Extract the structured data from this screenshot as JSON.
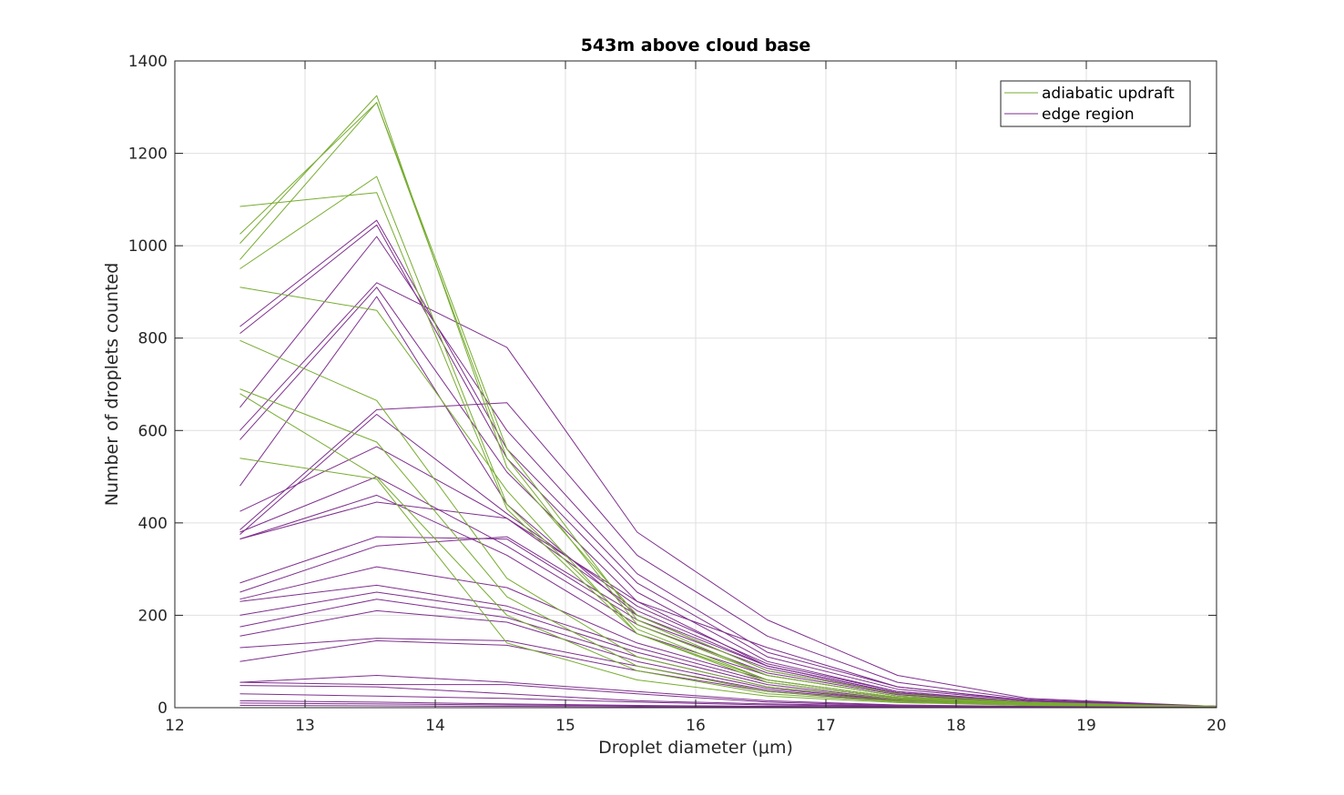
{
  "chart_data": {
    "type": "line",
    "title": "543m above cloud base",
    "xlabel": "Droplet diameter (μm)",
    "ylabel": "Number of droplets counted",
    "xlim": [
      12,
      20
    ],
    "ylim": [
      0,
      1400
    ],
    "xticks": [
      "12",
      "13",
      "14",
      "15",
      "16",
      "17",
      "18",
      "19",
      "20"
    ],
    "yticks": [
      "0",
      "200",
      "400",
      "600",
      "800",
      "1000",
      "1200",
      "1400"
    ],
    "grid": true,
    "legend_position": "top-right",
    "colors": {
      "adiabatic updraft": "#77ac30",
      "edge region": "#7e2f8e"
    },
    "legend": [
      "adiabatic updraft",
      "edge region"
    ],
    "x": [
      12.5,
      13.55,
      14.55,
      15.55,
      16.55,
      17.55,
      18.55,
      19.55,
      20
    ],
    "series": [
      {
        "group": "adiabatic updraft",
        "values": [
          1025,
          1310,
          560,
          190,
          70,
          25,
          10,
          5,
          3
        ]
      },
      {
        "group": "adiabatic updraft",
        "values": [
          1005,
          1325,
          520,
          200,
          80,
          30,
          12,
          5,
          3
        ]
      },
      {
        "group": "adiabatic updraft",
        "values": [
          970,
          1310,
          540,
          180,
          70,
          25,
          10,
          4,
          3
        ]
      },
      {
        "group": "adiabatic updraft",
        "values": [
          950,
          1150,
          440,
          170,
          60,
          22,
          9,
          4,
          3
        ]
      },
      {
        "group": "adiabatic updraft",
        "values": [
          1085,
          1115,
          430,
          160,
          55,
          20,
          8,
          4,
          3
        ]
      },
      {
        "group": "adiabatic updraft",
        "values": [
          910,
          860,
          470,
          160,
          60,
          22,
          9,
          4,
          3
        ]
      },
      {
        "group": "adiabatic updraft",
        "values": [
          795,
          665,
          280,
          110,
          45,
          18,
          8,
          3,
          3
        ]
      },
      {
        "group": "adiabatic updraft",
        "values": [
          690,
          575,
          240,
          90,
          35,
          15,
          7,
          3,
          3
        ]
      },
      {
        "group": "adiabatic updraft",
        "values": [
          680,
          500,
          200,
          80,
          30,
          13,
          6,
          3,
          3
        ]
      },
      {
        "group": "adiabatic updraft",
        "values": [
          540,
          495,
          140,
          60,
          25,
          11,
          5,
          3,
          3
        ]
      },
      {
        "group": "edge region",
        "values": [
          825,
          1055,
          560,
          270,
          110,
          40,
          15,
          6,
          3
        ]
      },
      {
        "group": "edge region",
        "values": [
          810,
          1045,
          540,
          250,
          100,
          35,
          13,
          5,
          3
        ]
      },
      {
        "group": "edge region",
        "values": [
          650,
          1020,
          600,
          290,
          120,
          45,
          16,
          6,
          3
        ]
      },
      {
        "group": "edge region",
        "values": [
          600,
          920,
          780,
          380,
          190,
          70,
          20,
          8,
          3
        ]
      },
      {
        "group": "edge region",
        "values": [
          580,
          910,
          510,
          230,
          90,
          32,
          12,
          5,
          3
        ]
      },
      {
        "group": "edge region",
        "values": [
          480,
          890,
          440,
          200,
          80,
          30,
          11,
          5,
          3
        ]
      },
      {
        "group": "edge region",
        "values": [
          385,
          645,
          660,
          330,
          155,
          55,
          18,
          7,
          3
        ]
      },
      {
        "group": "edge region",
        "values": [
          375,
          635,
          420,
          220,
          95,
          35,
          12,
          5,
          3
        ]
      },
      {
        "group": "edge region",
        "values": [
          425,
          565,
          410,
          230,
          130,
          45,
          15,
          6,
          3
        ]
      },
      {
        "group": "edge region",
        "values": [
          380,
          500,
          350,
          180,
          75,
          28,
          10,
          4,
          3
        ]
      },
      {
        "group": "edge region",
        "values": [
          365,
          460,
          330,
          160,
          70,
          25,
          9,
          4,
          3
        ]
      },
      {
        "group": "edge region",
        "values": [
          365,
          445,
          410,
          210,
          90,
          32,
          11,
          5,
          3
        ]
      },
      {
        "group": "edge region",
        "values": [
          270,
          370,
          365,
          190,
          85,
          30,
          10,
          4,
          3
        ]
      },
      {
        "group": "edge region",
        "values": [
          250,
          350,
          370,
          200,
          90,
          32,
          11,
          5,
          3
        ]
      },
      {
        "group": "edge region",
        "values": [
          235,
          305,
          260,
          140,
          60,
          22,
          8,
          3,
          3
        ]
      },
      {
        "group": "edge region",
        "values": [
          230,
          265,
          220,
          130,
          55,
          20,
          7,
          3,
          3
        ]
      },
      {
        "group": "edge region",
        "values": [
          200,
          250,
          210,
          120,
          50,
          18,
          7,
          3,
          3
        ]
      },
      {
        "group": "edge region",
        "values": [
          175,
          235,
          195,
          110,
          45,
          16,
          6,
          3,
          3
        ]
      },
      {
        "group": "edge region",
        "values": [
          155,
          210,
          185,
          100,
          42,
          15,
          6,
          3,
          3
        ]
      },
      {
        "group": "edge region",
        "values": [
          130,
          150,
          145,
          90,
          38,
          14,
          5,
          3,
          3
        ]
      },
      {
        "group": "edge region",
        "values": [
          100,
          145,
          135,
          80,
          35,
          13,
          5,
          3,
          3
        ]
      },
      {
        "group": "edge region",
        "values": [
          55,
          70,
          55,
          35,
          15,
          6,
          3,
          2,
          2
        ]
      },
      {
        "group": "edge region",
        "values": [
          55,
          50,
          50,
          30,
          12,
          5,
          2,
          2,
          2
        ]
      },
      {
        "group": "edge region",
        "values": [
          48,
          45,
          30,
          15,
          8,
          4,
          2,
          1,
          1
        ]
      },
      {
        "group": "edge region",
        "values": [
          30,
          25,
          20,
          12,
          6,
          3,
          2,
          1,
          1
        ]
      },
      {
        "group": "edge region",
        "values": [
          15,
          12,
          8,
          5,
          3,
          2,
          1,
          1,
          1
        ]
      },
      {
        "group": "edge region",
        "values": [
          10,
          8,
          6,
          4,
          2,
          1,
          1,
          1,
          1
        ]
      },
      {
        "group": "edge region",
        "values": [
          5,
          4,
          3,
          2,
          1,
          1,
          1,
          1,
          1
        ]
      }
    ]
  }
}
